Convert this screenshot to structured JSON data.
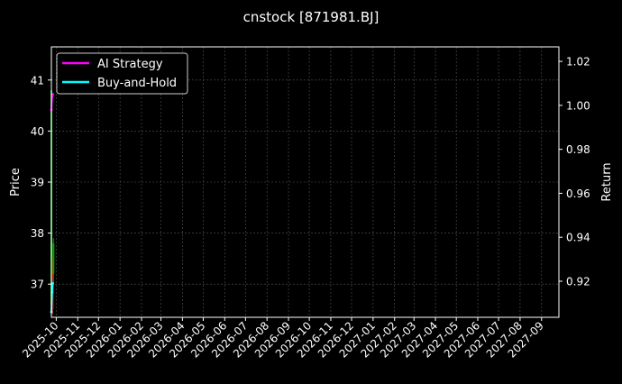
{
  "chart_data": {
    "type": "line",
    "title": "cnstock [871981.BJ]",
    "ylabel": "Price",
    "y2label": "Return",
    "ylim": [
      36.35,
      41.65
    ],
    "y2lim": [
      0.9036,
      1.0266
    ],
    "xlim": [
      "2025-09-24",
      "2027-09-26"
    ],
    "grid": true,
    "legend_position": "top-left",
    "x_ticks": [
      "2025-10",
      "2025-11",
      "2025-12",
      "2026-01",
      "2026-02",
      "2026-03",
      "2026-04",
      "2026-05",
      "2026-06",
      "2026-07",
      "2026-08",
      "2026-09",
      "2026-10",
      "2026-11",
      "2026-12",
      "2027-01",
      "2027-02",
      "2027-03",
      "2027-04",
      "2027-05",
      "2027-06",
      "2027-07",
      "2027-08",
      "2027-09"
    ],
    "y_ticks": [
      37,
      38,
      39,
      40,
      41
    ],
    "y2_ticks": [
      "0.92",
      "0.94",
      "0.96",
      "0.98",
      "1.00",
      "1.02"
    ],
    "candles": [
      {
        "date": "2025-09-24",
        "open": 36.6,
        "high": 41.0,
        "low": 36.4,
        "close": 40.8
      },
      {
        "date": "2025-09-26",
        "open": 37.5,
        "high": 37.5,
        "low": 36.4,
        "close": 36.5
      },
      {
        "date": "2025-09-27",
        "open": 37.2,
        "high": 37.9,
        "low": 37.0,
        "close": 37.8
      }
    ],
    "series": [
      {
        "name": "AI Strategy",
        "color": "#ff00ff",
        "axis": "right",
        "x": [
          "2025-09-24",
          "2025-09-25",
          "2025-09-26"
        ],
        "y": [
          0.998,
          1.004,
          1.005
        ]
      },
      {
        "name": "Buy-and-Hold",
        "color": "#00ffff",
        "axis": "right",
        "x": [
          "2025-09-24",
          "2025-09-25",
          "2025-09-26"
        ],
        "y": [
          0.906,
          0.915,
          0.919
        ]
      }
    ],
    "colors": {
      "up": "#00aa00",
      "down": "#cc0000",
      "grid": "#555555"
    }
  }
}
